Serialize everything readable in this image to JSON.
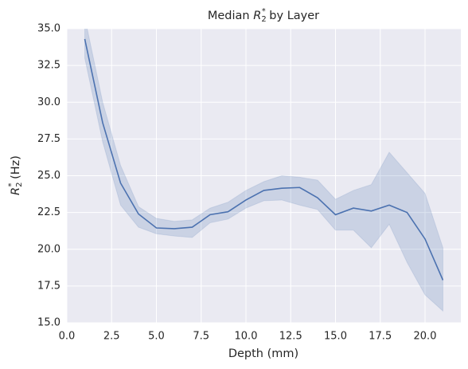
{
  "chart_data": {
    "type": "line",
    "title": [
      "Median ",
      "R",
      "2",
      "*",
      " by Layer"
    ],
    "xlabel": "Depth (mm)",
    "ylabel": [
      "R",
      "2",
      "*",
      " (Hz)"
    ],
    "x": [
      1,
      2,
      3,
      4,
      5,
      6,
      7,
      8,
      9,
      10,
      11,
      12,
      13,
      14,
      15,
      16,
      17,
      18,
      19,
      20,
      21
    ],
    "values": [
      34.3,
      28.6,
      24.5,
      22.4,
      21.45,
      21.4,
      21.5,
      22.35,
      22.55,
      23.35,
      24.0,
      24.15,
      24.2,
      23.5,
      22.35,
      22.8,
      22.6,
      23.0,
      22.5,
      20.7,
      17.9
    ],
    "ci_lower": [
      33.0,
      27.3,
      23.0,
      21.5,
      21.05,
      20.9,
      20.8,
      21.8,
      22.05,
      22.8,
      23.3,
      23.35,
      23.0,
      22.7,
      21.3,
      21.3,
      20.1,
      21.7,
      19.1,
      16.9,
      15.8
    ],
    "ci_upper": [
      35.8,
      30.0,
      25.7,
      22.9,
      22.1,
      21.9,
      22.0,
      22.8,
      23.2,
      24.0,
      24.6,
      25.0,
      24.9,
      24.7,
      23.4,
      24.0,
      24.4,
      26.6,
      25.2,
      23.8,
      20.1
    ],
    "color": "#4c72b0",
    "xlim": [
      0,
      22
    ],
    "ylim": [
      15,
      35
    ],
    "xticks": [
      {
        "value": 0,
        "label": "0.0"
      },
      {
        "value": 2.5,
        "label": "2.5"
      },
      {
        "value": 5,
        "label": "5.0"
      },
      {
        "value": 7.5,
        "label": "7.5"
      },
      {
        "value": 10,
        "label": "10.0"
      },
      {
        "value": 12.5,
        "label": "12.5"
      },
      {
        "value": 15,
        "label": "15.0"
      },
      {
        "value": 17.5,
        "label": "17.5"
      },
      {
        "value": 20,
        "label": "20.0"
      }
    ],
    "yticks": [
      {
        "value": 15,
        "label": "15.0"
      },
      {
        "value": 17.5,
        "label": "17.5"
      },
      {
        "value": 20,
        "label": "20.0"
      },
      {
        "value": 22.5,
        "label": "22.5"
      },
      {
        "value": 25,
        "label": "25.0"
      },
      {
        "value": 27.5,
        "label": "27.5"
      },
      {
        "value": 30,
        "label": "30.0"
      },
      {
        "value": 32.5,
        "label": "32.5"
      },
      {
        "value": 35,
        "label": "35.0"
      }
    ],
    "grid": true
  }
}
